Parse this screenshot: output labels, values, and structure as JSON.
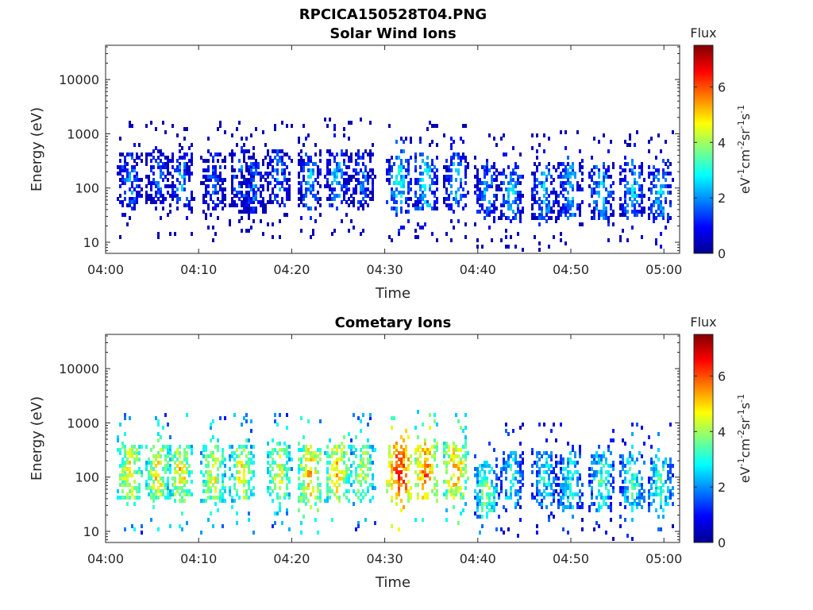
{
  "figure": {
    "title": "RPCICA150528T04.PNG"
  },
  "colors": {
    "axis": "#262626",
    "background": "#ffffff",
    "colormap": [
      "#00008f",
      "#0000ff",
      "#0080ff",
      "#00ffff",
      "#80ff80",
      "#ffff00",
      "#ff8000",
      "#ff0000",
      "#800000"
    ]
  },
  "chart_data": [
    {
      "type": "heatmap",
      "title": "Solar Wind Ions",
      "xlabel": "Time",
      "ylabel": "Energy (eV)",
      "x_ticks": [
        "04:00",
        "04:10",
        "04:20",
        "04:30",
        "04:40",
        "04:50",
        "05:00"
      ],
      "x_range_minutes": [
        0,
        60.5
      ],
      "y_scale": "log",
      "y_ticks": [
        "10",
        "100",
        "1000",
        "10000"
      ],
      "y_range": [
        5.5,
        45000
      ],
      "colorbar": {
        "title": "Flux",
        "label": "eV-1cm-2sr-1s-1",
        "ticks": [
          "0",
          "2",
          "4",
          "6"
        ],
        "range": [
          0,
          7.5
        ]
      },
      "bursts": [
        {
          "t": 2.5,
          "e": 150,
          "flux": 2.2
        },
        {
          "t": 5.5,
          "e": 160,
          "flux": 2.0
        },
        {
          "t": 8.0,
          "e": 150,
          "flux": 2.3
        },
        {
          "t": 11.5,
          "e": 140,
          "flux": 2.0
        },
        {
          "t": 14.5,
          "e": 170,
          "flux": 2.1
        },
        {
          "t": 15.8,
          "e": 120,
          "flux": 2.0
        },
        {
          "t": 18.5,
          "e": 170,
          "flux": 2.2
        },
        {
          "t": 21.8,
          "e": 150,
          "flux": 2.4
        },
        {
          "t": 24.8,
          "e": 170,
          "flux": 2.5
        },
        {
          "t": 27.5,
          "e": 160,
          "flux": 2.0
        },
        {
          "t": 31.5,
          "e": 130,
          "flux": 3.0
        },
        {
          "t": 34.3,
          "e": 140,
          "flux": 3.0
        },
        {
          "t": 37.5,
          "e": 150,
          "flux": 2.6
        },
        {
          "t": 40.8,
          "e": 90,
          "flux": 2.4
        },
        {
          "t": 43.5,
          "e": 90,
          "flux": 2.6
        },
        {
          "t": 47.0,
          "e": 90,
          "flux": 2.6
        },
        {
          "t": 49.8,
          "e": 100,
          "flux": 2.6
        },
        {
          "t": 53.2,
          "e": 90,
          "flux": 2.7
        },
        {
          "t": 56.5,
          "e": 100,
          "flux": 2.7
        },
        {
          "t": 59.5,
          "e": 90,
          "flux": 2.7
        }
      ]
    },
    {
      "type": "heatmap",
      "title": "Cometary Ions",
      "xlabel": "Time",
      "ylabel": "Energy (eV)",
      "x_ticks": [
        "04:00",
        "04:10",
        "04:20",
        "04:30",
        "04:40",
        "04:50",
        "05:00"
      ],
      "x_range_minutes": [
        0,
        60.5
      ],
      "y_scale": "log",
      "y_ticks": [
        "10",
        "100",
        "1000",
        "10000"
      ],
      "y_range": [
        5.5,
        45000
      ],
      "colorbar": {
        "title": "Flux",
        "label": "eV-1cm-2sr-1s-1",
        "ticks": [
          "0",
          "2",
          "4",
          "6"
        ],
        "range": [
          0,
          7.5
        ]
      },
      "bursts": [
        {
          "t": 2.5,
          "e": 130,
          "flux": 5.0
        },
        {
          "t": 5.5,
          "e": 130,
          "flux": 5.0
        },
        {
          "t": 8.0,
          "e": 130,
          "flux": 5.0
        },
        {
          "t": 11.5,
          "e": 120,
          "flux": 4.8
        },
        {
          "t": 14.5,
          "e": 130,
          "flux": 4.8
        },
        {
          "t": 18.5,
          "e": 140,
          "flux": 4.7
        },
        {
          "t": 21.8,
          "e": 120,
          "flux": 5.4
        },
        {
          "t": 24.8,
          "e": 130,
          "flux": 5.2
        },
        {
          "t": 27.5,
          "e": 140,
          "flux": 4.5
        },
        {
          "t": 31.5,
          "e": 130,
          "flux": 6.5
        },
        {
          "t": 34.3,
          "e": 140,
          "flux": 6.0
        },
        {
          "t": 37.5,
          "e": 140,
          "flux": 5.4
        },
        {
          "t": 40.8,
          "e": 60,
          "flux": 4.0
        },
        {
          "t": 43.5,
          "e": 100,
          "flux": 3.4
        },
        {
          "t": 47.0,
          "e": 110,
          "flux": 3.2
        },
        {
          "t": 49.8,
          "e": 90,
          "flux": 3.4
        },
        {
          "t": 53.2,
          "e": 90,
          "flux": 3.6
        },
        {
          "t": 56.5,
          "e": 90,
          "flux": 3.6
        },
        {
          "t": 59.5,
          "e": 80,
          "flux": 3.6
        }
      ]
    }
  ]
}
